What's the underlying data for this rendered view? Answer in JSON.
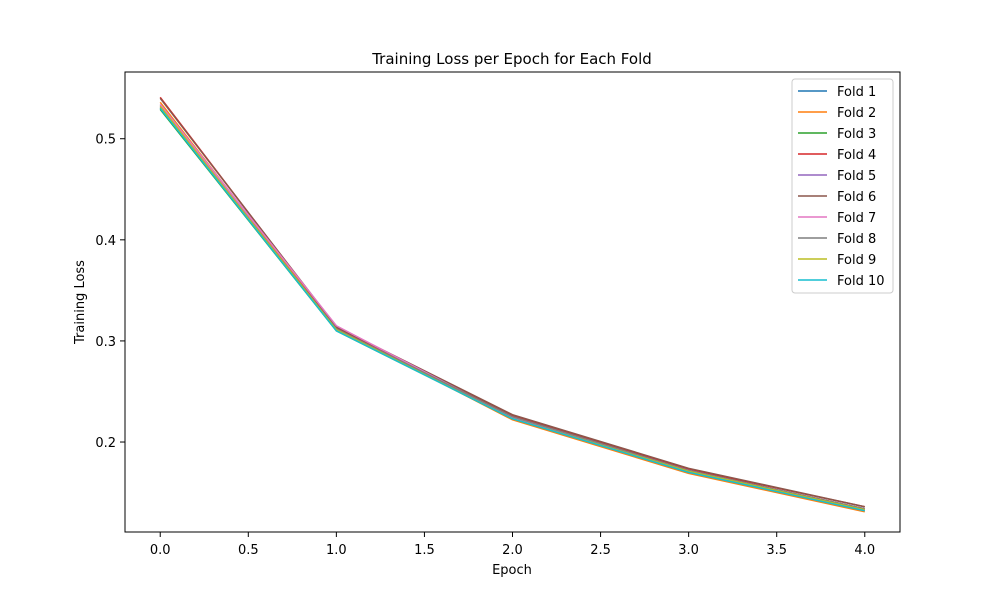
{
  "chart_data": {
    "type": "line",
    "title": "Training Loss per Epoch for Each Fold",
    "xlabel": "Epoch",
    "ylabel": "Training Loss",
    "xlim": [
      -0.2,
      4.2
    ],
    "ylim": [
      0.111,
      0.566
    ],
    "x_ticks": [
      0.0,
      0.5,
      1.0,
      1.5,
      2.0,
      2.5,
      3.0,
      3.5,
      4.0
    ],
    "x_tick_labels": [
      "0.0",
      "0.5",
      "1.0",
      "1.5",
      "2.0",
      "2.5",
      "3.0",
      "3.5",
      "4.0"
    ],
    "y_ticks": [
      0.2,
      0.3,
      0.4,
      0.5
    ],
    "y_tick_labels": [
      "0.2",
      "0.3",
      "0.4",
      "0.5"
    ],
    "grid": false,
    "legend_position": "top-right",
    "x": [
      0,
      1,
      2,
      3,
      4
    ],
    "series": [
      {
        "name": "Fold 1",
        "color": "#1f77b4",
        "values": [
          0.53,
          0.311,
          0.223,
          0.17,
          0.132
        ]
      },
      {
        "name": "Fold 2",
        "color": "#ff7f0e",
        "values": [
          0.536,
          0.312,
          0.222,
          0.169,
          0.131
        ]
      },
      {
        "name": "Fold 3",
        "color": "#2ca02c",
        "values": [
          0.529,
          0.31,
          0.223,
          0.171,
          0.133
        ]
      },
      {
        "name": "Fold 4",
        "color": "#d62728",
        "values": [
          0.541,
          0.313,
          0.226,
          0.173,
          0.136
        ]
      },
      {
        "name": "Fold 5",
        "color": "#9467bd",
        "values": [
          0.533,
          0.311,
          0.224,
          0.171,
          0.134
        ]
      },
      {
        "name": "Fold 6",
        "color": "#8c564b",
        "values": [
          0.54,
          0.314,
          0.227,
          0.174,
          0.136
        ]
      },
      {
        "name": "Fold 7",
        "color": "#e377c2",
        "values": [
          0.534,
          0.315,
          0.224,
          0.172,
          0.133
        ]
      },
      {
        "name": "Fold 8",
        "color": "#7f7f7f",
        "values": [
          0.531,
          0.312,
          0.225,
          0.172,
          0.134
        ]
      },
      {
        "name": "Fold 9",
        "color": "#bcbd22",
        "values": [
          0.532,
          0.311,
          0.223,
          0.171,
          0.133
        ]
      },
      {
        "name": "Fold 10",
        "color": "#17becf",
        "values": [
          0.53,
          0.31,
          0.223,
          0.17,
          0.132
        ]
      }
    ]
  }
}
